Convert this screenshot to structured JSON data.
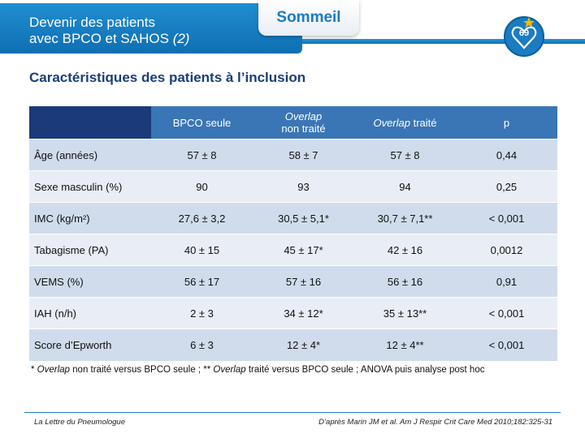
{
  "header": {
    "title_line1": "Devenir des patients",
    "title_line2_prefix": "avec BPCO et SAHOS ",
    "title_line2_suffix": "(2)",
    "tab_label": "Sommeil",
    "badge_number": "69"
  },
  "section_title": "Caractéristiques des patients à l’inclusion",
  "table": {
    "columns": [
      "BPCO seule",
      "Overlap non traité",
      "Overlap traité",
      "p"
    ],
    "col2_line1": "Overlap",
    "col2_line2": "non traité",
    "col3_italic": "Overlap",
    "col3_rest": " traité",
    "rows": [
      {
        "label": "Âge (années)",
        "bpco": "57 ± 8",
        "overlap_nt": "58 ± 7",
        "overlap_t": "57 ± 8",
        "p": "0,44"
      },
      {
        "label": "Sexe masculin (%)",
        "bpco": "90",
        "overlap_nt": "93",
        "overlap_t": "94",
        "p": "0,25"
      },
      {
        "label": "IMC (kg/m²)",
        "bpco": "27,6 ± 3,2",
        "overlap_nt": "30,5 ± 5,1*",
        "overlap_t": "30,7 ± 7,1**",
        "p": "< 0,001"
      },
      {
        "label": "Tabagisme (PA)",
        "bpco": "40 ± 15",
        "overlap_nt": "45 ± 17*",
        "overlap_t": "42 ± 16",
        "p": "0,0012"
      },
      {
        "label": "VEMS (%)",
        "bpco": "56 ± 17",
        "overlap_nt": "57 ± 16",
        "overlap_t": "56 ± 16",
        "p": "0,91"
      },
      {
        "label": "IAH (n/h)",
        "bpco": "2 ± 3",
        "overlap_nt": "34 ± 12*",
        "overlap_t": "35 ± 13**",
        "p": "< 0,001"
      },
      {
        "label": "Score d’Epworth",
        "bpco": "6 ± 3",
        "overlap_nt": "12 ± 4*",
        "overlap_t": "12 ± 4**",
        "p": "< 0,001"
      }
    ]
  },
  "footnote": {
    "part1": "* ",
    "part2_italic": "Overlap",
    "part3": " non traité versus BPCO seule ; ** ",
    "part4_italic": "Overlap",
    "part5": " traité versus BPCO seule ; ANOVA puis analyse post hoc"
  },
  "footer": {
    "left": "La Lettre du Pneumologue",
    "right": "D’après Marin JM et al. Am J Respir Crit Care Med 2010;182:325-31"
  },
  "colors": {
    "header_blue": "#1a7cc1",
    "title_navy": "#1a3e7a",
    "table_header": "#3a76b5",
    "row_dark": "#d0dcec",
    "row_light": "#e9eef6"
  }
}
